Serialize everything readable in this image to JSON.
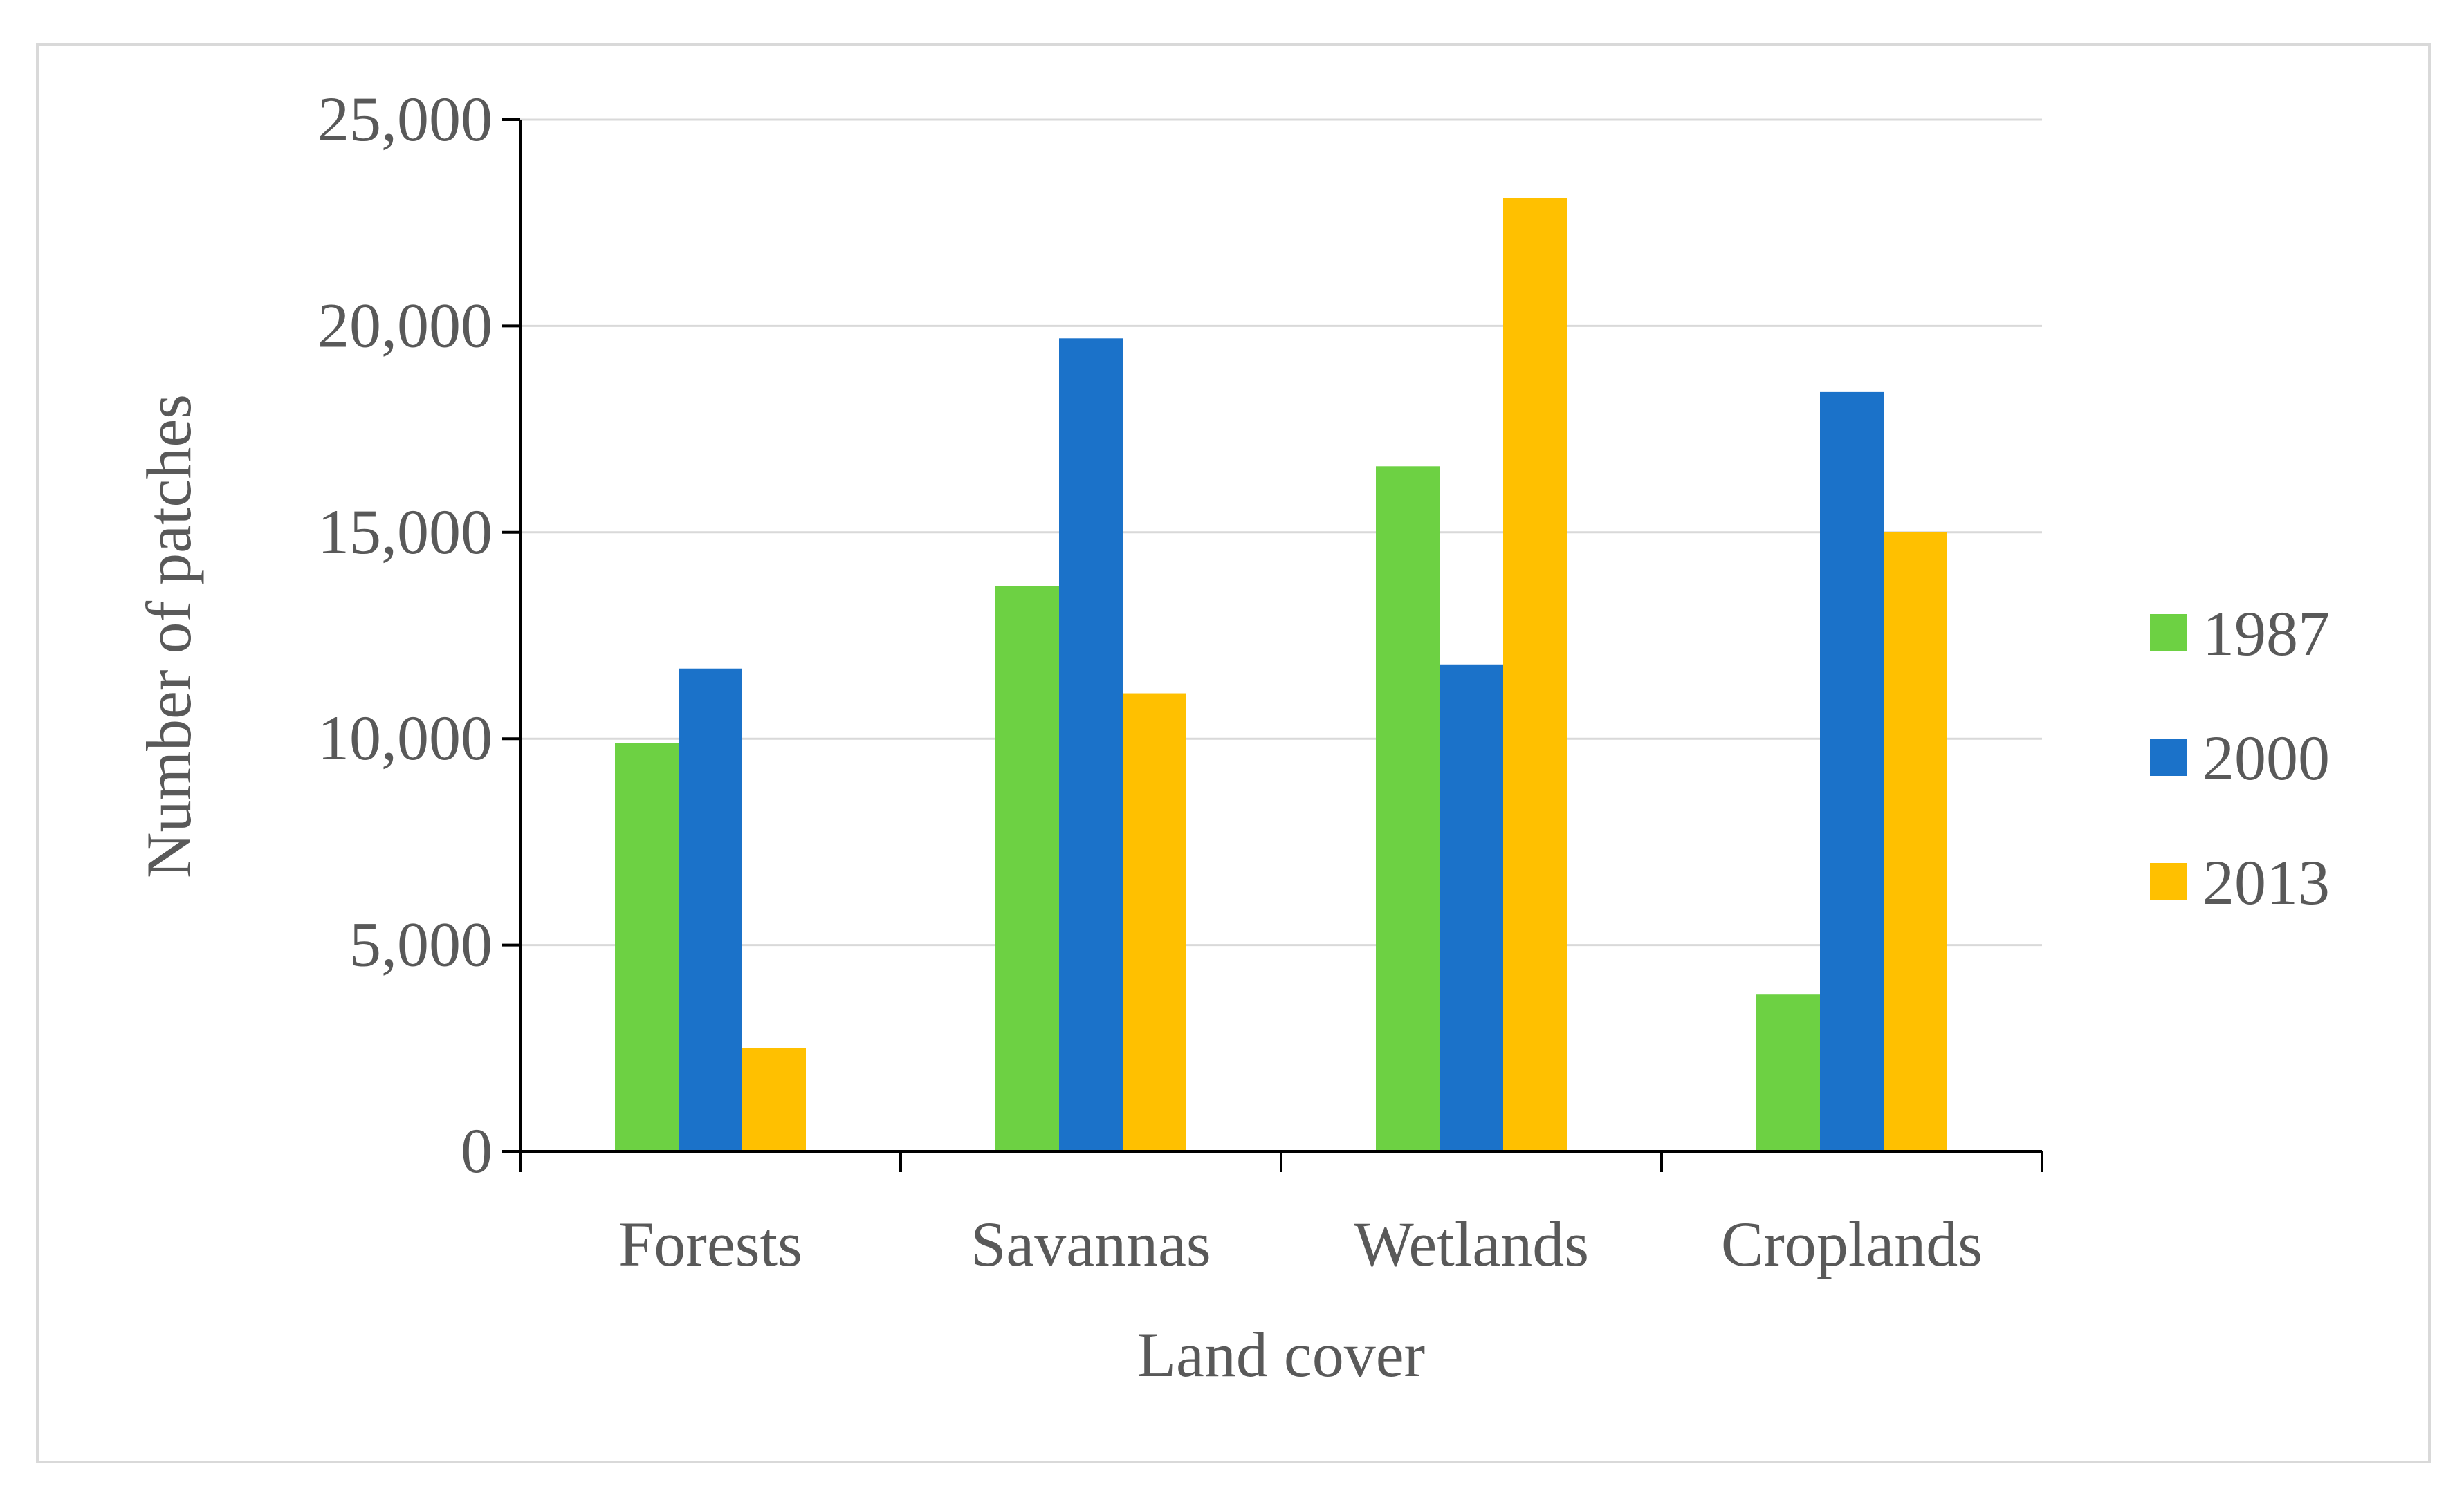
{
  "chart_data": {
    "type": "bar",
    "title": "",
    "xlabel": "Land cover",
    "ylabel": "Number of patches",
    "categories": [
      "Forests",
      "Savannas",
      "Wetlands",
      "Croplands"
    ],
    "series": [
      {
        "name": "1987",
        "color": "#6dd143",
        "values": [
          9900,
          13700,
          16600,
          3800
        ]
      },
      {
        "name": "2000",
        "color": "#1b72c9",
        "values": [
          11700,
          19700,
          11800,
          18400
        ]
      },
      {
        "name": "2013",
        "color": "#ffc000",
        "values": [
          2500,
          11100,
          23100,
          15000
        ]
      }
    ],
    "ylim": [
      0,
      25000
    ],
    "yticks": [
      0,
      5000,
      10000,
      15000,
      20000,
      25000
    ],
    "ytick_labels": [
      "0",
      "5,000",
      "10,000",
      "15,000",
      "20,000",
      "25,000"
    ],
    "grid": true,
    "legend_position": "right",
    "gridline_color": "#d9d9d9",
    "axis_color": "#000000"
  }
}
